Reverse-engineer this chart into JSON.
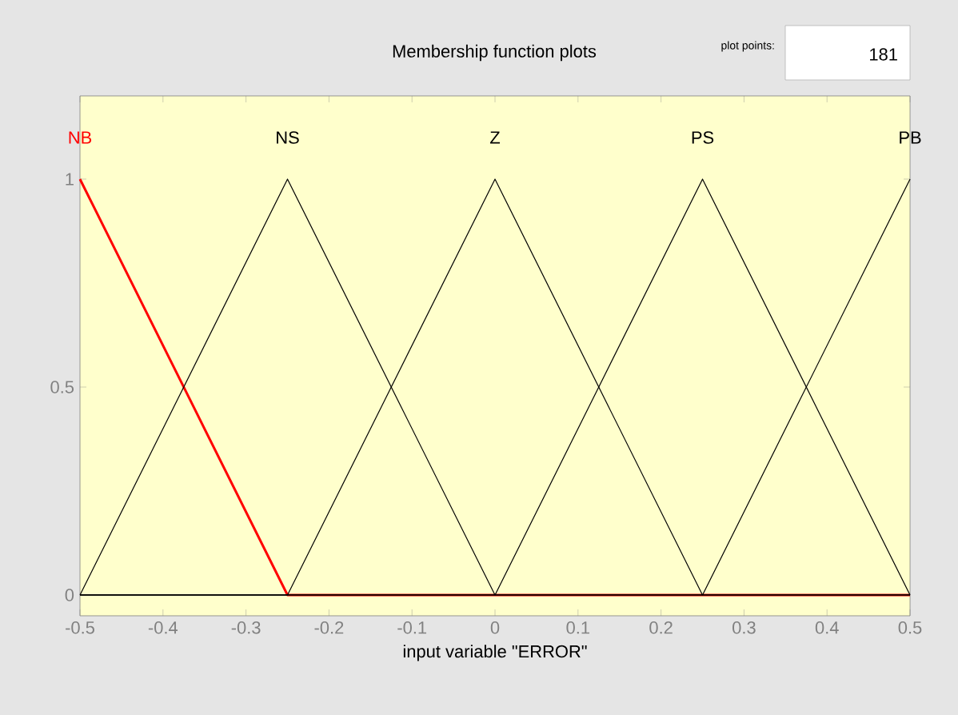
{
  "chart_data": {
    "type": "line",
    "title": "Membership function plots",
    "xlabel": "input variable \"ERROR\"",
    "annotations": [
      "plot points:",
      "181"
    ],
    "series": [
      {
        "name": "NB",
        "color": "#ff0000",
        "x": [
          -0.5,
          -0.25,
          0.5
        ],
        "values": [
          1,
          0,
          0
        ]
      },
      {
        "name": "NS",
        "color": "#000000",
        "x": [
          -0.5,
          -0.25,
          0,
          0.5
        ],
        "values": [
          0,
          1,
          0,
          0
        ]
      },
      {
        "name": "Z",
        "color": "#000000",
        "x": [
          -0.5,
          -0.25,
          0,
          0.25,
          0.5
        ],
        "values": [
          0,
          0,
          1,
          0,
          0
        ]
      },
      {
        "name": "PS",
        "color": "#000000",
        "x": [
          -0.5,
          0,
          0.25,
          0.5
        ],
        "values": [
          0,
          0,
          1,
          0
        ]
      },
      {
        "name": "PB",
        "color": "#000000",
        "x": [
          -0.5,
          0.25,
          0.5
        ],
        "values": [
          0,
          0,
          1
        ]
      }
    ],
    "xlim": [
      -0.5,
      0.5
    ],
    "xticks": [
      -0.5,
      -0.4,
      -0.3,
      -0.2,
      -0.1,
      0,
      0.1,
      0.2,
      0.3,
      0.4,
      0.5
    ],
    "ylim": [
      -0.05,
      1.2
    ],
    "yticks": [
      0,
      0.5,
      1
    ],
    "grid": false,
    "line_style": "solid"
  }
}
